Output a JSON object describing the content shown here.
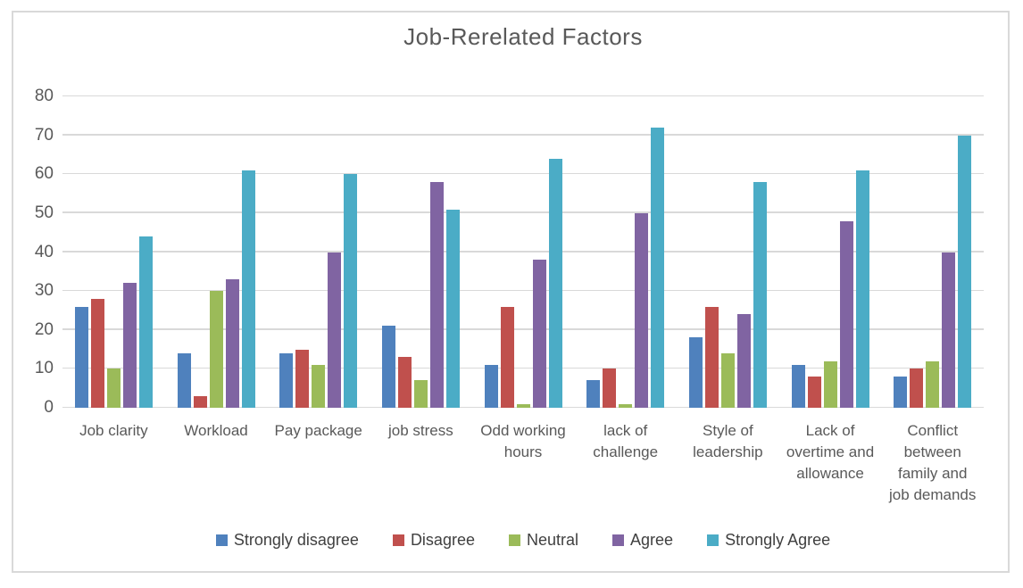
{
  "chart_data": {
    "type": "bar",
    "title": "Job-Rerelated Factors",
    "categories": [
      "Job clarity",
      "Workload",
      "Pay package",
      "job stress",
      "Odd working hours",
      "lack of challenge",
      "Style of leadership",
      "Lack of overtime and allowance",
      "Conflict between family and job demands"
    ],
    "series": [
      {
        "name": "Strongly disagree",
        "color": "#4F81BD",
        "values": [
          26,
          14,
          14,
          21,
          11,
          7,
          18,
          11,
          8
        ]
      },
      {
        "name": "Disagree",
        "color": "#C0504D",
        "values": [
          28,
          3,
          15,
          13,
          26,
          10,
          26,
          8,
          10
        ]
      },
      {
        "name": "Neutral",
        "color": "#9BBB59",
        "values": [
          10,
          30,
          11,
          7,
          1,
          1,
          14,
          12,
          12
        ]
      },
      {
        "name": "Agree",
        "color": "#8064A2",
        "values": [
          32,
          33,
          40,
          58,
          38,
          50,
          24,
          48,
          40
        ]
      },
      {
        "name": "Strongly Agree",
        "color": "#4BACC6",
        "values": [
          44,
          61,
          60,
          51,
          64,
          72,
          58,
          61,
          70
        ]
      }
    ],
    "xlabel": "",
    "ylabel": "",
    "ylim": [
      0,
      80
    ],
    "yticks": [
      0,
      10,
      20,
      30,
      40,
      50,
      60,
      70,
      80
    ],
    "grid": true,
    "legend_position": "bottom",
    "colors": {
      "gridline": "#D9D9D9",
      "frame_border": "#D9D9D9",
      "title_text": "#595959",
      "axis_text": "#595959",
      "legend_text": "#404040",
      "background": "#FFFFFF"
    }
  }
}
